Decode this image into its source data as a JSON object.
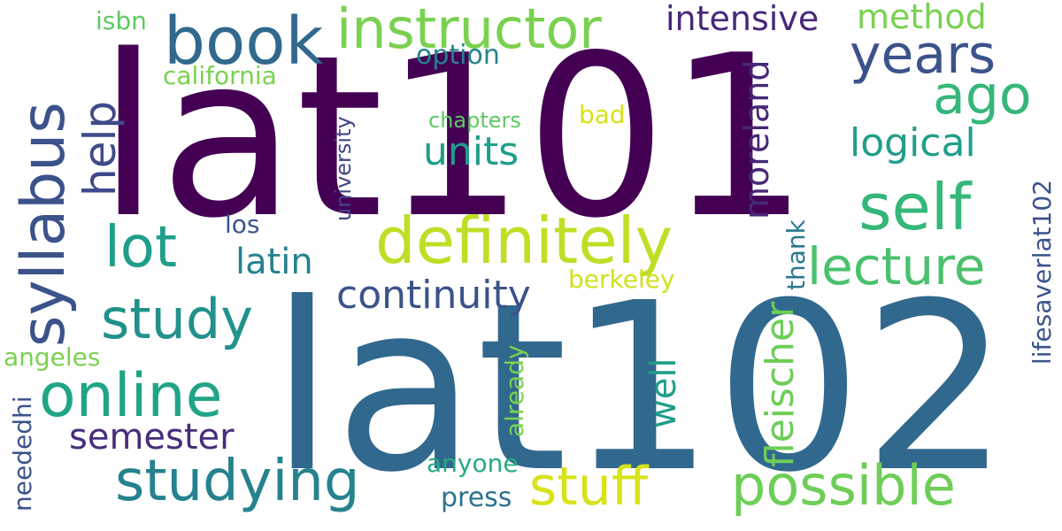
{
  "words": [
    {
      "id": "lat102",
      "text": "lat102",
      "color": "#31688e"
    },
    {
      "id": "lat101",
      "text": "lat101",
      "color": "#440154"
    },
    {
      "id": "syllabus",
      "text": "syllabus",
      "color": "#3b528b"
    },
    {
      "id": "book",
      "text": "book",
      "color": "#31688e"
    },
    {
      "id": "instructor",
      "text": "instructor",
      "color": "#7ad151"
    },
    {
      "id": "intensive",
      "text": "intensive",
      "color": "#482878"
    },
    {
      "id": "method",
      "text": "method",
      "color": "#7ad151"
    },
    {
      "id": "isbn",
      "text": "isbn",
      "color": "#5ec962"
    },
    {
      "id": "years",
      "text": "years",
      "color": "#3b528b"
    },
    {
      "id": "ago",
      "text": "ago",
      "color": "#35b779"
    },
    {
      "id": "california",
      "text": "california",
      "color": "#7ad151"
    },
    {
      "id": "option",
      "text": "option",
      "color": "#26828e"
    },
    {
      "id": "help",
      "text": "help",
      "color": "#3e4a89"
    },
    {
      "id": "university",
      "text": "university",
      "color": "#414487"
    },
    {
      "id": "moreland",
      "text": "moreland",
      "color": "#482878"
    },
    {
      "id": "bad",
      "text": "bad",
      "color": "#d8e219"
    },
    {
      "id": "chapters",
      "text": "chapters",
      "color": "#5ec962"
    },
    {
      "id": "units",
      "text": "units",
      "color": "#1f9e89"
    },
    {
      "id": "logical",
      "text": "logical",
      "color": "#1f9e89"
    },
    {
      "id": "self",
      "text": "self",
      "color": "#35b779"
    },
    {
      "id": "definitely",
      "text": "definitely",
      "color": "#bddf26"
    },
    {
      "id": "lot",
      "text": "lot",
      "color": "#1f9e89"
    },
    {
      "id": "latin",
      "text": "latin",
      "color": "#26828e"
    },
    {
      "id": "los",
      "text": "los",
      "color": "#39568c"
    },
    {
      "id": "lecture",
      "text": "lecture",
      "color": "#4ac16d"
    },
    {
      "id": "thank",
      "text": "thank",
      "color": "#2a788e"
    },
    {
      "id": "lifesaver",
      "text": "lifesaverlat102",
      "color": "#3b528b"
    },
    {
      "id": "berkeley",
      "text": "berkeley",
      "color": "#d0e11c"
    },
    {
      "id": "continuity",
      "text": "continuity",
      "color": "#3b528b"
    },
    {
      "id": "study",
      "text": "study",
      "color": "#21918c"
    },
    {
      "id": "angeles",
      "text": "angeles",
      "color": "#7ad151"
    },
    {
      "id": "online",
      "text": "online",
      "color": "#20a486"
    },
    {
      "id": "fleischer",
      "text": "fleischer",
      "color": "#6ece58"
    },
    {
      "id": "well",
      "text": "well",
      "color": "#1f9e89"
    },
    {
      "id": "already",
      "text": "already",
      "color": "#7ad151"
    },
    {
      "id": "semester",
      "text": "semester",
      "color": "#472d7b"
    },
    {
      "id": "neededhi",
      "text": "neededhi",
      "color": "#3b528b"
    },
    {
      "id": "anyone",
      "text": "anyone",
      "color": "#25ab82"
    },
    {
      "id": "studying",
      "text": "studying",
      "color": "#26828e"
    },
    {
      "id": "stuff",
      "text": "stuff",
      "color": "#d8e219"
    },
    {
      "id": "possible",
      "text": "possible",
      "color": "#6ece58"
    },
    {
      "id": "press",
      "text": "press",
      "color": "#2c728e"
    }
  ]
}
